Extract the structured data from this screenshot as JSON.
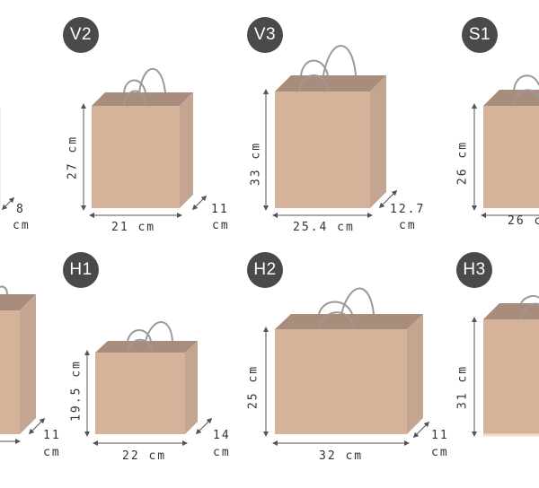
{
  "colors": {
    "bag_front": "#d4b39a",
    "bag_side": "#c4a591",
    "bag_top_inner": "#a88c7c",
    "handle": "#9a9a9a",
    "badge_bg": "#4a4a4a",
    "dimension_line": "#555555"
  },
  "bags": [
    {
      "id": "partial-left-top",
      "label": "",
      "height": "",
      "width": "",
      "depth": "8",
      "depth_unit": "cm"
    },
    {
      "id": "v2",
      "label": "V2",
      "height": "27 cm",
      "width": "21 cm",
      "depth": "11",
      "depth_unit": "cm"
    },
    {
      "id": "v3",
      "label": "V3",
      "height": "33 cm",
      "width": "25.4 cm",
      "depth": "12.7",
      "depth_unit": "cm"
    },
    {
      "id": "s1",
      "label": "S1",
      "height": "26 cm",
      "width": "26 c",
      "depth": "",
      "depth_unit": ""
    },
    {
      "id": "partial-left-bottom",
      "label": "",
      "height": "",
      "width": "",
      "depth": "11",
      "depth_unit": "cm"
    },
    {
      "id": "h1",
      "label": "H1",
      "height": "19.5 cm",
      "width": "22 cm",
      "depth": "14",
      "depth_unit": "cm"
    },
    {
      "id": "h2",
      "label": "H2",
      "height": "25 cm",
      "width": "32 cm",
      "depth": "11",
      "depth_unit": "cm"
    },
    {
      "id": "h3",
      "label": "H3",
      "height": "31 cm",
      "width": "",
      "depth": "",
      "depth_unit": ""
    }
  ]
}
